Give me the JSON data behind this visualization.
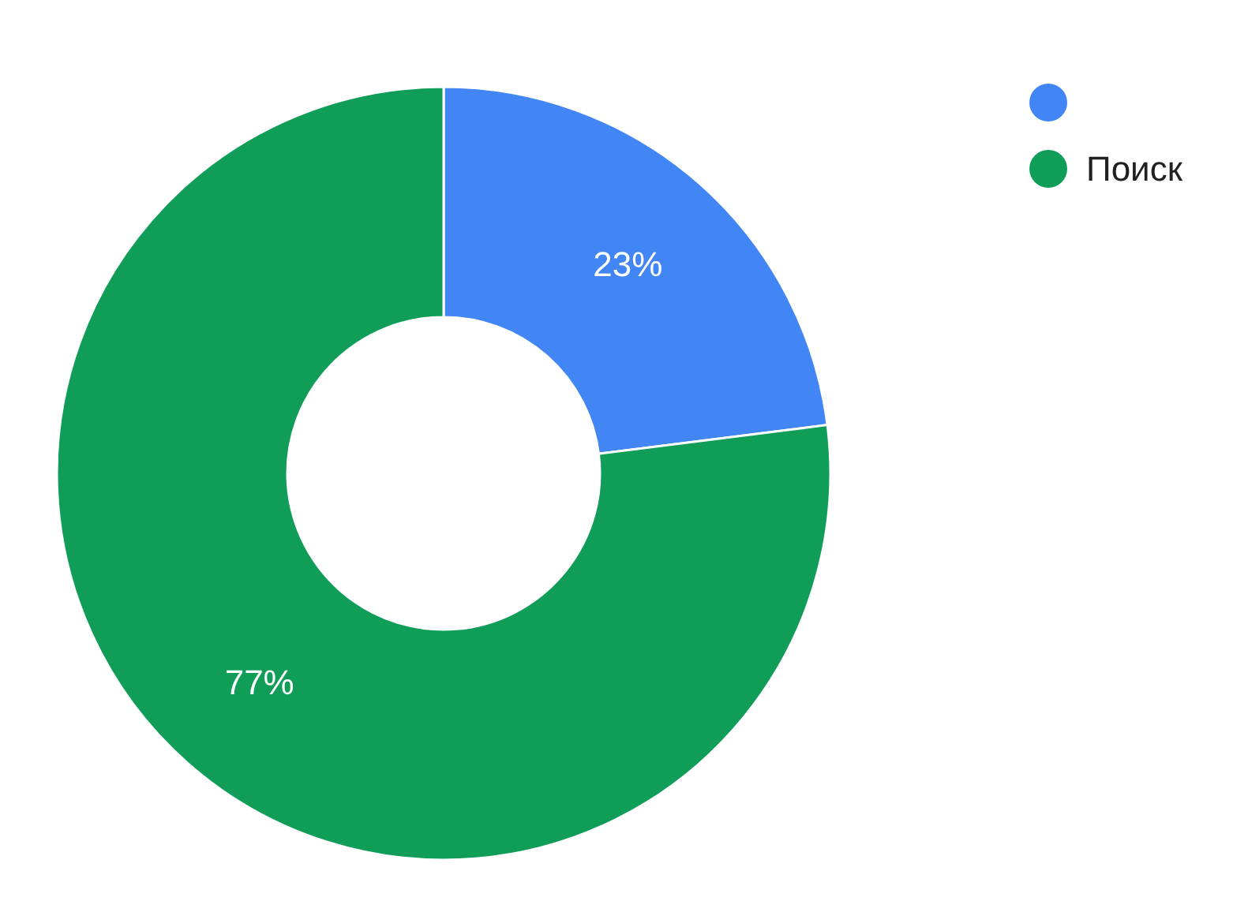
{
  "chart_data": {
    "type": "donut",
    "categories": [
      null,
      "Поиск"
    ],
    "values": [
      23,
      77
    ],
    "colors": [
      "#4285f4",
      "#0f9d58"
    ],
    "value_labels": [
      "23%",
      "77%"
    ],
    "legend": "top right"
  }
}
